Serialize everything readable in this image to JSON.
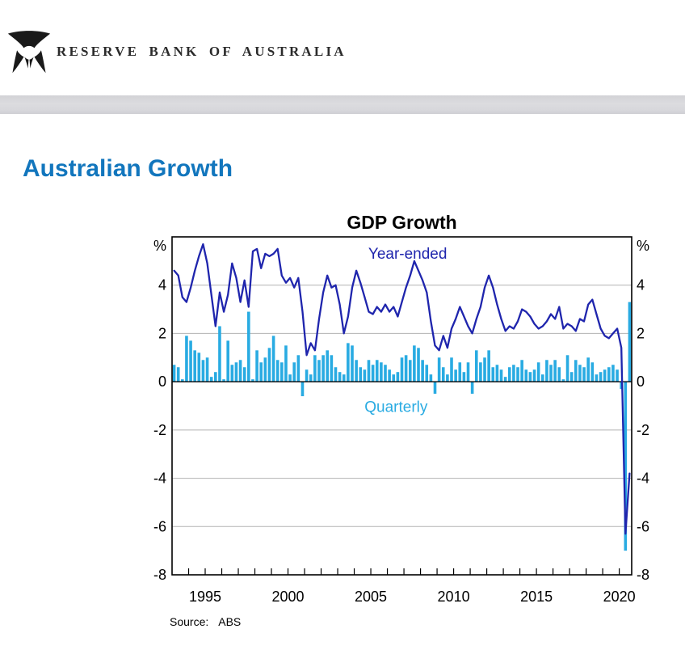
{
  "header": {
    "brand": "RESERVE BANK OF AUSTRALIA",
    "logo_icon": "rba-wings-icon"
  },
  "page": {
    "title": "Australian Growth"
  },
  "chart": {
    "source_label": "Source:",
    "source_value": "ABS"
  },
  "colors": {
    "accent_blue": "#1276bd",
    "line_blue": "#1f25ad",
    "bar_blue": "#29abe2",
    "grid_gray": "#b3b3b3",
    "navbar_gray": "#d8d8dc"
  },
  "chart_data": {
    "type": "mixed",
    "title": "GDP Growth",
    "frequency": "quarterly",
    "x_start": "1993Q1",
    "x_end": "2020Q3",
    "xticks_labeled": [
      1995,
      2000,
      2005,
      2010,
      2015,
      2020
    ],
    "xticks_minor_every_year": true,
    "ylabel_left": "%",
    "ylabel_right": "%",
    "ylim": [
      -8,
      6
    ],
    "yticks": [
      4,
      2,
      0,
      -2,
      -4,
      -6,
      -8
    ],
    "grid": true,
    "legend_position": "inline-annotations",
    "series": [
      {
        "name": "Year-ended",
        "type": "line",
        "color": "#1f25ad",
        "values": [
          4.6,
          4.4,
          3.5,
          3.3,
          3.9,
          4.6,
          5.2,
          5.7,
          4.9,
          3.6,
          2.3,
          3.7,
          2.9,
          3.6,
          4.9,
          4.3,
          3.3,
          4.2,
          3.1,
          5.4,
          5.5,
          4.7,
          5.3,
          5.2,
          5.3,
          5.5,
          4.4,
          4.1,
          4.3,
          3.9,
          4.3,
          2.9,
          1.1,
          1.6,
          1.3,
          2.6,
          3.7,
          4.4,
          3.9,
          4.0,
          3.2,
          2.0,
          2.7,
          3.9,
          4.6,
          4.1,
          3.5,
          2.9,
          2.8,
          3.1,
          2.9,
          3.2,
          2.9,
          3.1,
          2.7,
          3.3,
          3.9,
          4.4,
          5.0,
          4.6,
          4.2,
          3.7,
          2.5,
          1.5,
          1.3,
          1.9,
          1.4,
          2.2,
          2.6,
          3.1,
          2.7,
          2.3,
          2.0,
          2.6,
          3.1,
          3.9,
          4.4,
          3.9,
          3.2,
          2.6,
          2.1,
          2.3,
          2.2,
          2.5,
          3.0,
          2.9,
          2.7,
          2.4,
          2.2,
          2.3,
          2.5,
          2.8,
          2.6,
          3.1,
          2.2,
          2.4,
          2.3,
          2.1,
          2.6,
          2.5,
          3.2,
          3.4,
          2.8,
          2.2,
          1.9,
          1.8,
          2.0,
          2.2,
          1.4,
          -6.3,
          -3.8
        ]
      },
      {
        "name": "Quarterly",
        "type": "bar",
        "color": "#29abe2",
        "values": [
          0.7,
          0.6,
          0.1,
          1.9,
          1.7,
          1.3,
          1.2,
          0.9,
          1.0,
          0.2,
          0.4,
          2.3,
          0.1,
          1.7,
          0.7,
          0.8,
          0.9,
          0.6,
          2.9,
          0.1,
          1.3,
          0.8,
          1.0,
          1.4,
          1.9,
          0.9,
          0.8,
          1.5,
          0.3,
          0.8,
          1.1,
          -0.6,
          0.5,
          0.3,
          1.1,
          0.9,
          1.1,
          1.3,
          1.1,
          0.6,
          0.4,
          0.3,
          1.6,
          1.5,
          0.9,
          0.6,
          0.5,
          0.9,
          0.7,
          0.9,
          0.8,
          0.7,
          0.5,
          0.3,
          0.4,
          1.0,
          1.1,
          0.9,
          1.5,
          1.4,
          0.9,
          0.7,
          0.3,
          -0.5,
          1.0,
          0.6,
          0.3,
          1.0,
          0.5,
          0.8,
          0.4,
          0.8,
          -0.5,
          1.3,
          0.8,
          1.0,
          1.3,
          0.6,
          0.7,
          0.5,
          0.2,
          0.6,
          0.7,
          0.6,
          0.9,
          0.5,
          0.4,
          0.5,
          0.8,
          0.3,
          0.9,
          0.7,
          0.9,
          0.6,
          0.1,
          1.1,
          0.4,
          0.9,
          0.7,
          0.6,
          1.0,
          0.8,
          0.3,
          0.4,
          0.5,
          0.6,
          0.7,
          0.5,
          -0.3,
          -7.0,
          3.3
        ]
      }
    ],
    "annotations": [
      {
        "text": "Year-ended",
        "x": 2007.1,
        "y": 5.3,
        "color": "#1f25ad"
      },
      {
        "text": "Quarterly",
        "x": 2006.4,
        "y": -1.05,
        "color": "#29abe2"
      }
    ],
    "source": "Source: ABS"
  }
}
